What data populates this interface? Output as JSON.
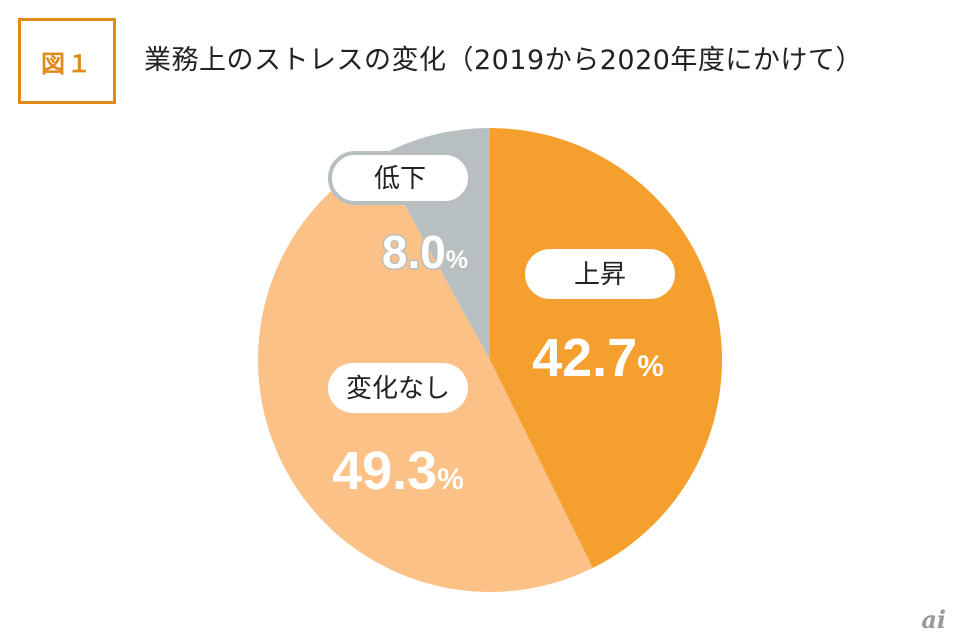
{
  "figure": {
    "badge": "図１",
    "title": "業務上のストレスの変化（2019から2020年度にかけて）"
  },
  "chart_data": {
    "type": "pie",
    "categories": [
      "上昇",
      "変化なし",
      "低下"
    ],
    "values": [
      42.7,
      49.3,
      8.0
    ],
    "value_labels": [
      "42.7",
      "49.3",
      "8.0"
    ],
    "unit": "%",
    "colors": [
      "#f59f2e",
      "#fbc187",
      "#b7bfc0"
    ],
    "start": "12 o'clock",
    "direction": "clockwise"
  },
  "watermark": "ai"
}
